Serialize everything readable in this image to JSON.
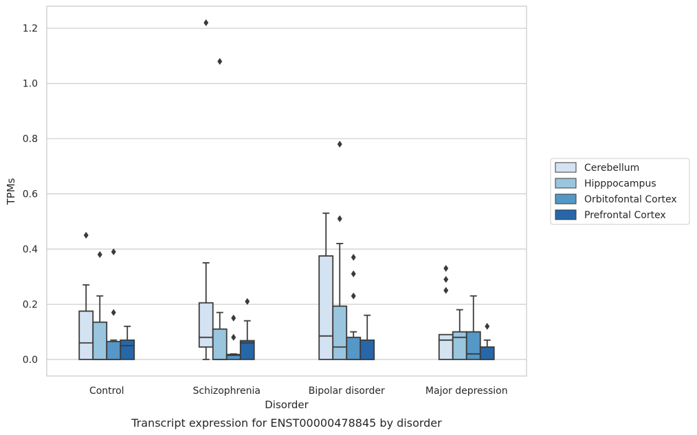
{
  "caption": "Transcript expression for ENST00000478845 by disorder",
  "chart_data": {
    "type": "box",
    "xlabel": "Disorder",
    "ylabel": "TPMs",
    "ylim": [
      -0.06,
      1.28
    ],
    "yticks": [
      0.0,
      0.2,
      0.4,
      0.6,
      0.8,
      1.0,
      1.2
    ],
    "ytick_labels": [
      "0.0",
      "0.2",
      "0.4",
      "0.6",
      "0.8",
      "1.0",
      "1.2"
    ],
    "grid": "horizontal",
    "legend_position": "right",
    "categories": [
      "Control",
      "Schizophrenia",
      "Bipolar disorder",
      "Major depression"
    ],
    "series": [
      {
        "name": "Cerebellum",
        "color": "#d4e3f2",
        "boxes": [
          {
            "min": 0.0,
            "q1": 0.0,
            "median": 0.06,
            "q3": 0.175,
            "max": 0.27,
            "outliers": [
              0.45
            ]
          },
          {
            "min": 0.0,
            "q1": 0.045,
            "median": 0.08,
            "q3": 0.205,
            "max": 0.35,
            "outliers": [
              1.22
            ]
          },
          {
            "min": 0.0,
            "q1": 0.0,
            "median": 0.085,
            "q3": 0.375,
            "max": 0.53,
            "outliers": []
          },
          {
            "min": 0.0,
            "q1": 0.0,
            "median": 0.07,
            "q3": 0.09,
            "max": 0.09,
            "outliers": [
              0.25,
              0.29,
              0.33
            ]
          }
        ]
      },
      {
        "name": "Hipppocampus",
        "color": "#9ac5de",
        "boxes": [
          {
            "min": 0.0,
            "q1": 0.0,
            "median": 0.0,
            "q3": 0.135,
            "max": 0.23,
            "outliers": [
              0.38
            ]
          },
          {
            "min": 0.0,
            "q1": 0.0,
            "median": 0.0,
            "q3": 0.11,
            "max": 0.17,
            "outliers": [
              1.08
            ]
          },
          {
            "min": 0.0,
            "q1": 0.0,
            "median": 0.045,
            "q3": 0.193,
            "max": 0.42,
            "outliers": [
              0.51,
              0.78
            ]
          },
          {
            "min": 0.0,
            "q1": 0.0,
            "median": 0.08,
            "q3": 0.1,
            "max": 0.18,
            "outliers": []
          }
        ]
      },
      {
        "name": "Orbitofontal Cortex",
        "color": "#5597c6",
        "boxes": [
          {
            "min": 0.0,
            "q1": 0.0,
            "median": 0.0,
            "q3": 0.065,
            "max": 0.07,
            "outliers": [
              0.17,
              0.39
            ]
          },
          {
            "min": 0.0,
            "q1": 0.0,
            "median": 0.015,
            "q3": 0.018,
            "max": 0.02,
            "outliers": [
              0.08,
              0.15
            ]
          },
          {
            "min": 0.0,
            "q1": 0.0,
            "median": 0.0,
            "q3": 0.08,
            "max": 0.1,
            "outliers": [
              0.23,
              0.31,
              0.37
            ]
          },
          {
            "min": 0.0,
            "q1": 0.0,
            "median": 0.02,
            "q3": 0.1,
            "max": 0.23,
            "outliers": []
          }
        ]
      },
      {
        "name": "Prefrontal Cortex",
        "color": "#2767a9",
        "boxes": [
          {
            "min": 0.0,
            "q1": 0.0,
            "median": 0.05,
            "q3": 0.07,
            "max": 0.12,
            "outliers": []
          },
          {
            "min": 0.0,
            "q1": 0.0,
            "median": 0.06,
            "q3": 0.068,
            "max": 0.14,
            "outliers": [
              0.21
            ]
          },
          {
            "min": 0.0,
            "q1": 0.0,
            "median": 0.0,
            "q3": 0.07,
            "max": 0.16,
            "outliers": []
          },
          {
            "min": 0.0,
            "q1": 0.0,
            "median": 0.0,
            "q3": 0.045,
            "max": 0.07,
            "outliers": [
              0.12
            ]
          }
        ]
      }
    ]
  }
}
